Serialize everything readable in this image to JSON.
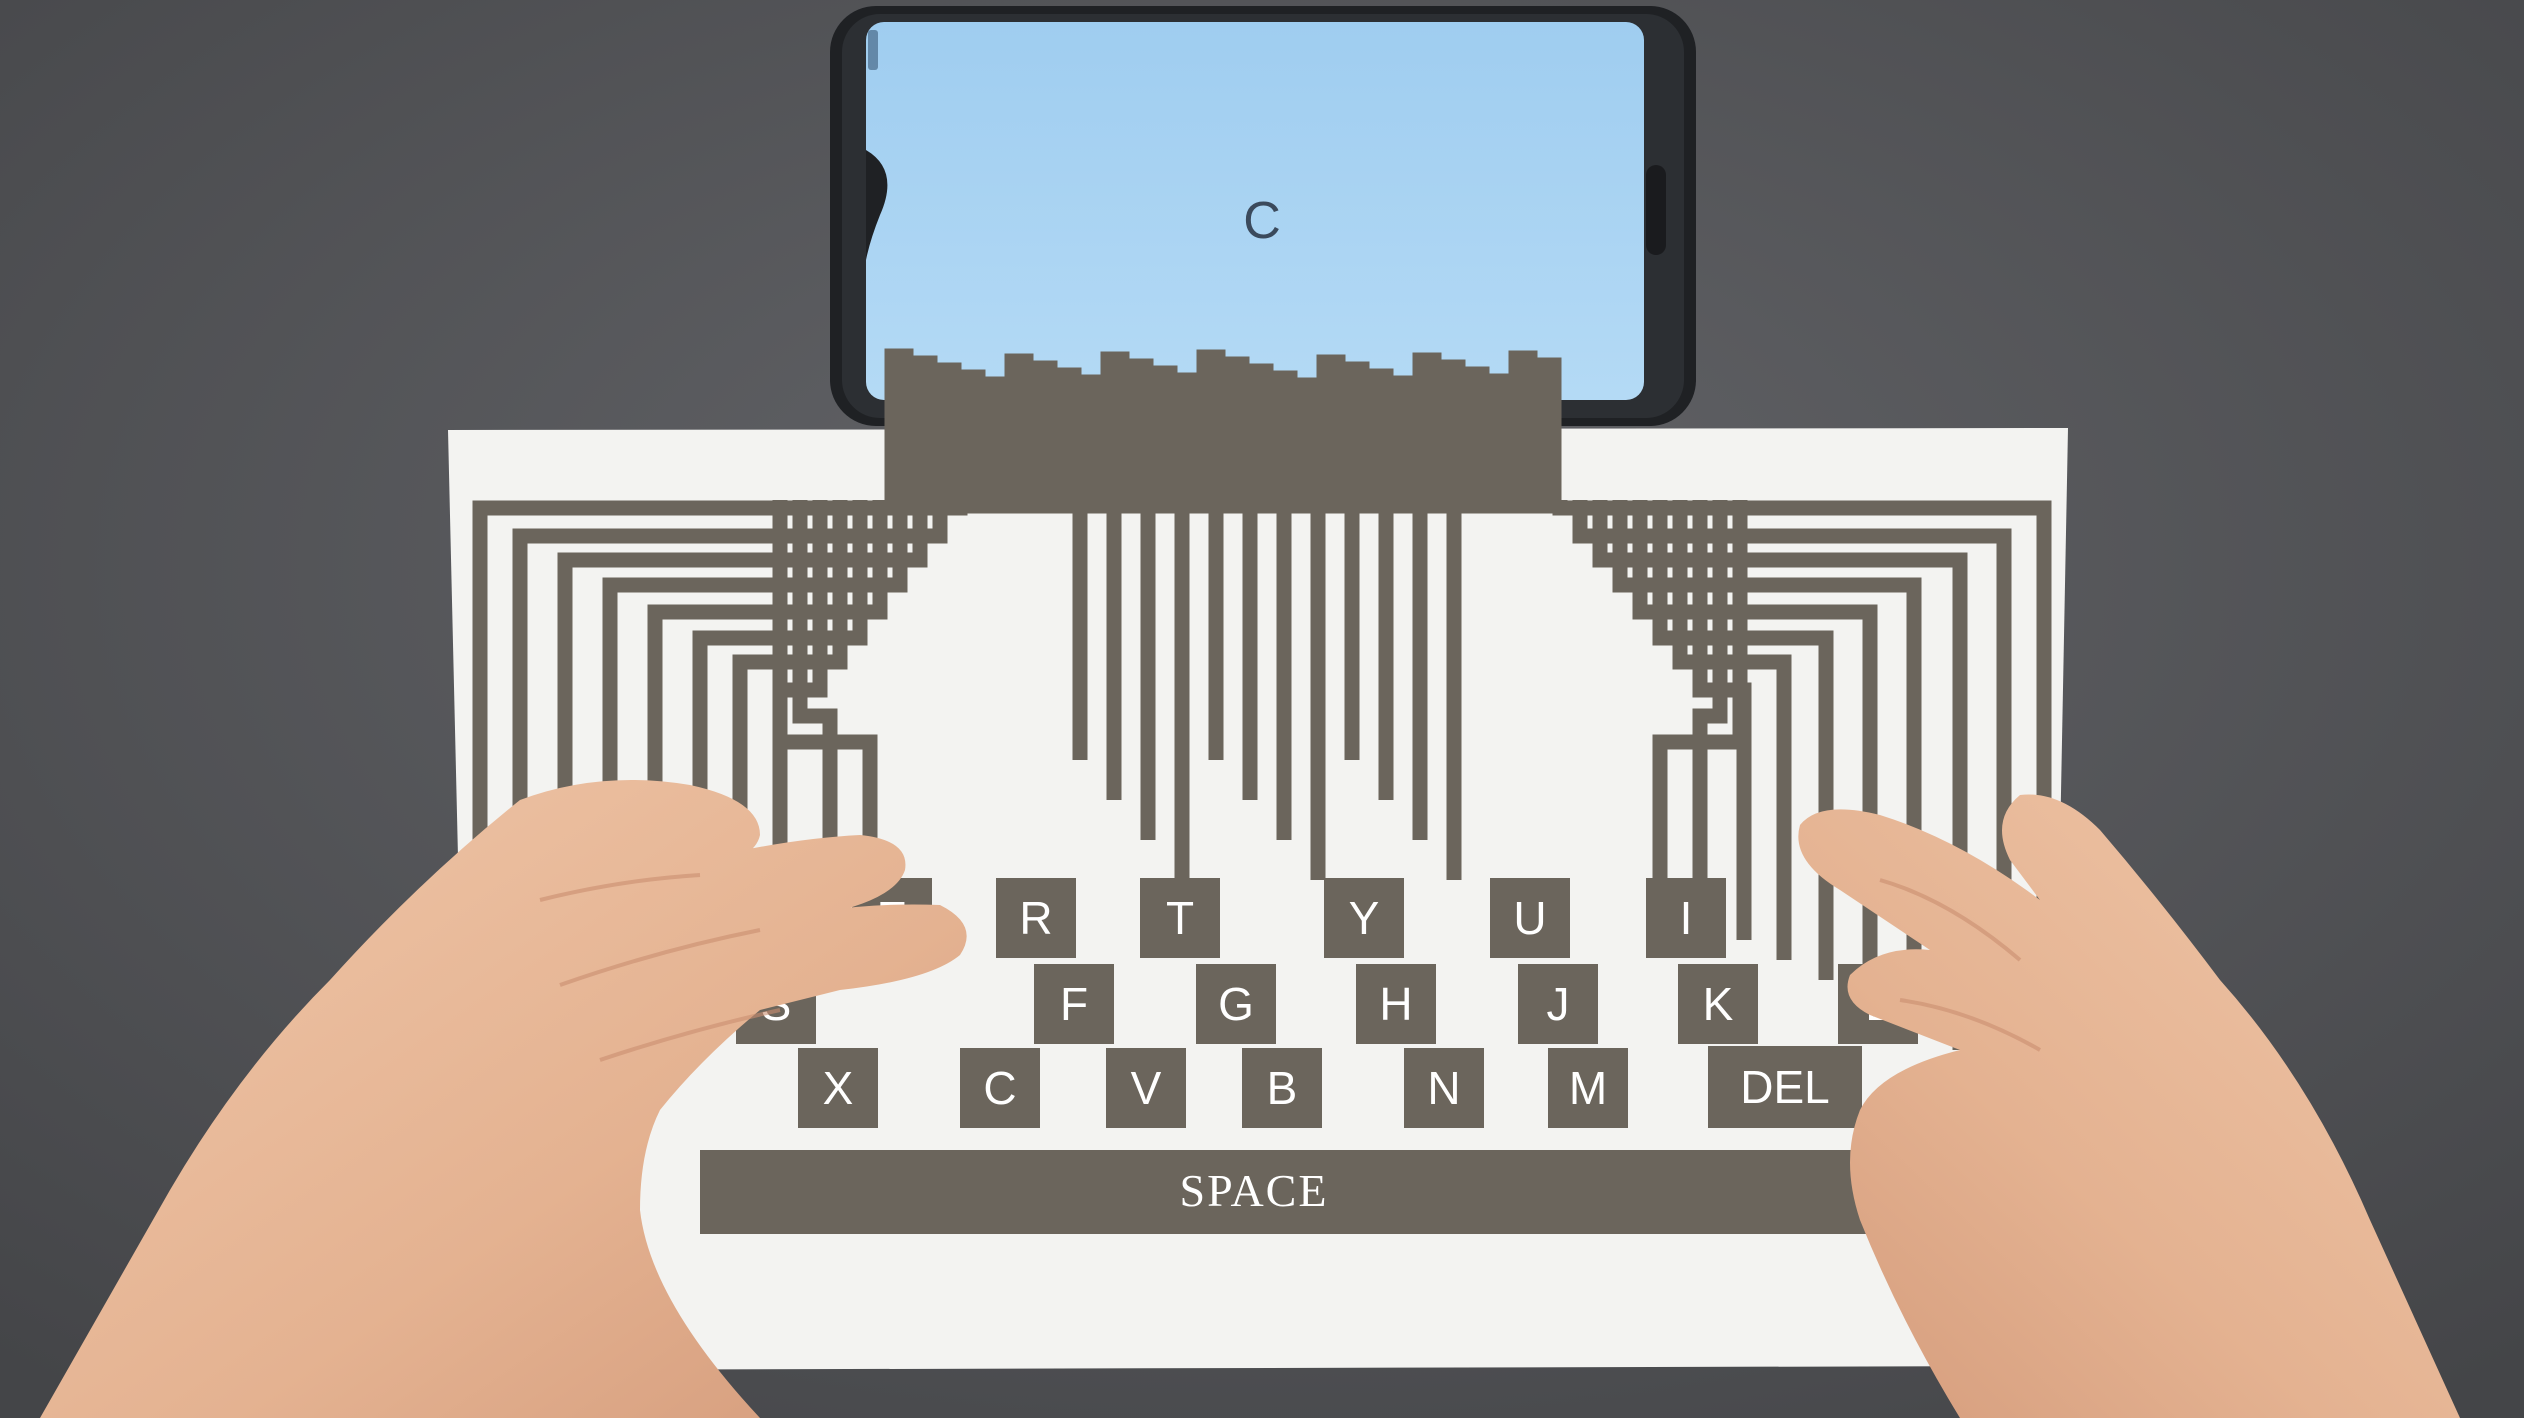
{
  "phone": {
    "screen_text": "C"
  },
  "keyboard": {
    "keys_row1": [
      "E",
      "R",
      "T",
      "Y",
      "U",
      "I"
    ],
    "keys_row2": [
      "S",
      "F",
      "G",
      "H",
      "J",
      "K",
      "L"
    ],
    "keys_row3": [
      "X",
      "C",
      "V",
      "B",
      "N",
      "M"
    ],
    "del_label": "DEL",
    "space_label": "SPACE"
  },
  "colors": {
    "background": "#55565a",
    "phone_screen": "#a7d3f2",
    "paper": "#f3f3f1",
    "trace": "#6b655c",
    "skin": "#e7b99b"
  }
}
